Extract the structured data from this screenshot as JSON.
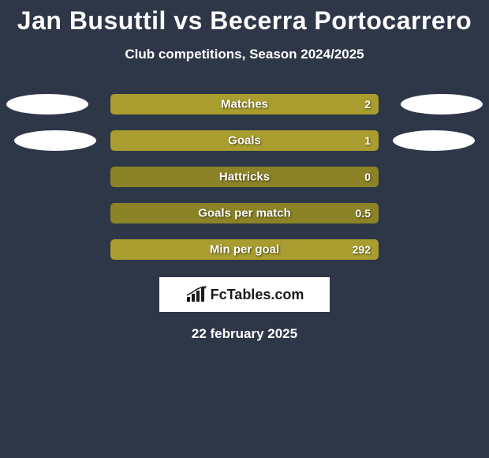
{
  "title": "Jan Busuttil vs Becerra Portocarrero",
  "subtitle": "Club competitions, Season 2024/2025",
  "colors": {
    "background": "#2d3748",
    "bar_left": "#a89d2e",
    "bar_right": "#8c8326",
    "ellipse": "#ffffff",
    "text": "#ffffff"
  },
  "stats": [
    {
      "label": "Matches",
      "value": "2",
      "left_pct": 100,
      "right_pct": 0,
      "left_color": "#a89d2e",
      "right_color": "#8c8326",
      "show_left_ellipse": true,
      "show_right_ellipse": true
    },
    {
      "label": "Goals",
      "value": "1",
      "left_pct": 100,
      "right_pct": 0,
      "left_color": "#a89d2e",
      "right_color": "#8c8326",
      "show_left_ellipse": true,
      "show_right_ellipse": true
    },
    {
      "label": "Hattricks",
      "value": "0",
      "left_pct": 0,
      "right_pct": 100,
      "left_color": "#a89d2e",
      "right_color": "#8c8326",
      "show_left_ellipse": false,
      "show_right_ellipse": false
    },
    {
      "label": "Goals per match",
      "value": "0.5",
      "left_pct": 0,
      "right_pct": 100,
      "left_color": "#a89d2e",
      "right_color": "#8c8326",
      "show_left_ellipse": false,
      "show_right_ellipse": false
    },
    {
      "label": "Min per goal",
      "value": "292",
      "left_pct": 100,
      "right_pct": 0,
      "left_color": "#a89d2e",
      "right_color": "#8c8326",
      "show_left_ellipse": false,
      "show_right_ellipse": false
    }
  ],
  "logo": {
    "text": "FcTables.com",
    "icon_color": "#1a1a1a"
  },
  "date": "22 february 2025"
}
